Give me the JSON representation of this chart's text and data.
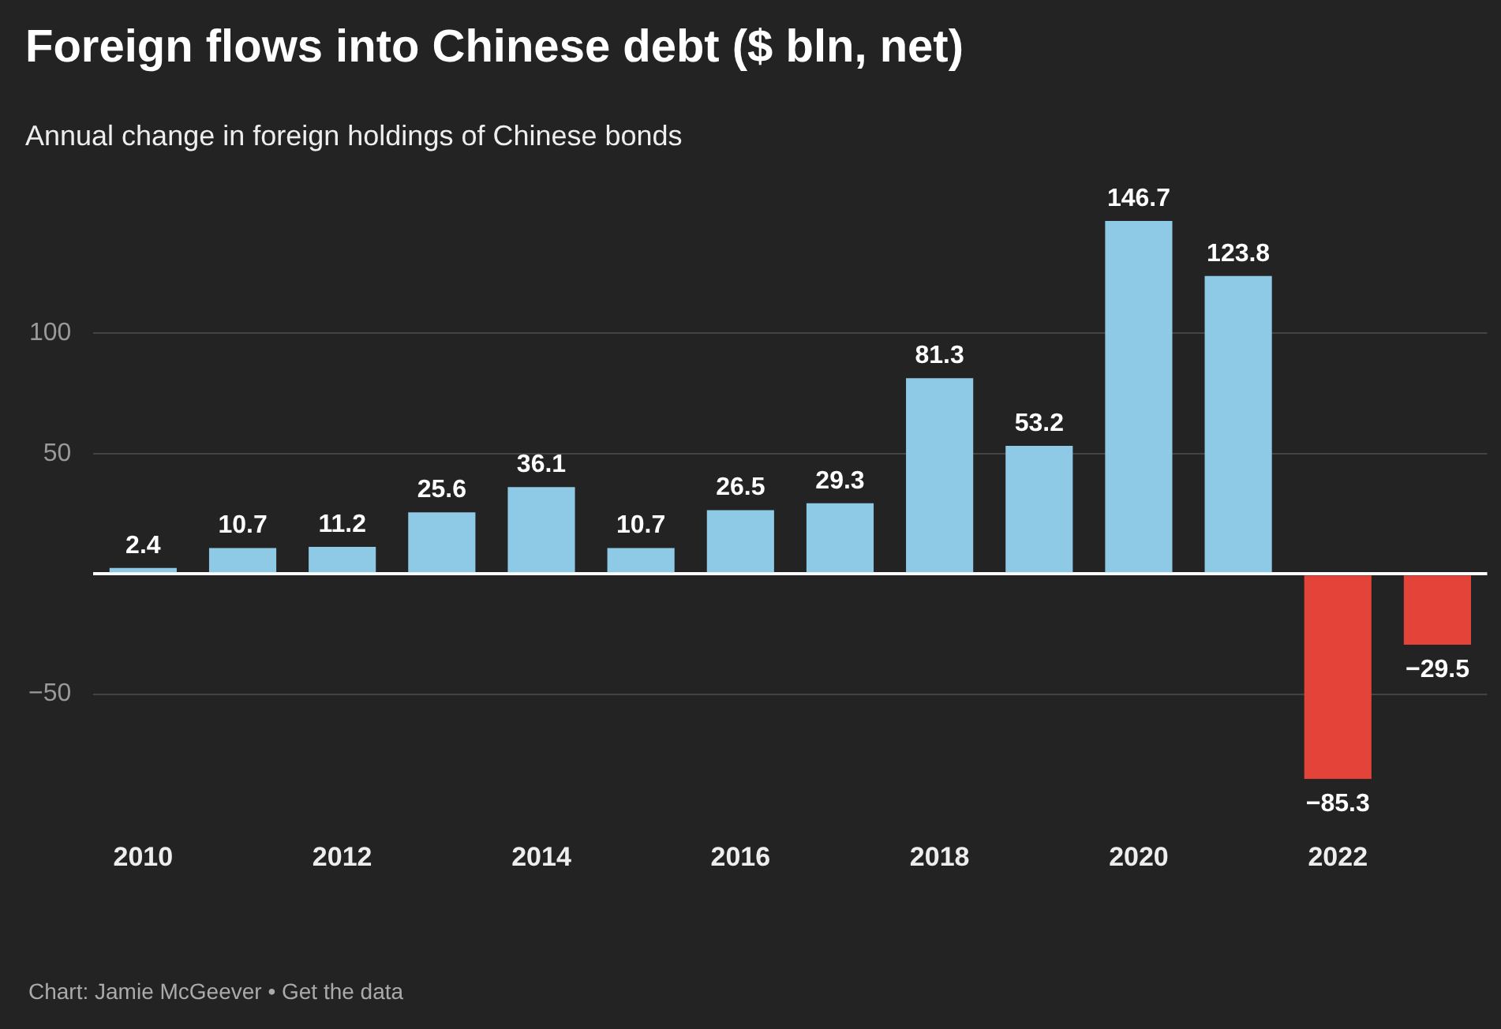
{
  "chart_data": {
    "type": "bar",
    "title": "Foreign flows into Chinese debt ($ bln, net)",
    "subtitle": "Annual change in foreign holdings of Chinese bonds",
    "categories": [
      "2010",
      null,
      "2012",
      null,
      "2014",
      null,
      "2016",
      null,
      "2018",
      null,
      "2020",
      null,
      "2022",
      null
    ],
    "values": [
      2.4,
      10.7,
      11.2,
      25.6,
      36.1,
      10.7,
      26.5,
      29.3,
      81.3,
      53.2,
      146.7,
      123.8,
      -85.3,
      -29.5
    ],
    "colors": [
      "#8ecae6",
      "#8ecae6",
      "#8ecae6",
      "#8ecae6",
      "#8ecae6",
      "#8ecae6",
      "#8ecae6",
      "#8ecae6",
      "#8ecae6",
      "#8ecae6",
      "#8ecae6",
      "#8ecae6",
      "#e4433a",
      "#e4433a"
    ],
    "value_labels": [
      "2.4",
      "10.7",
      "11.2",
      "25.6",
      "36.1",
      "10.7",
      "26.5",
      "29.3",
      "81.3",
      "53.2",
      "146.7",
      "123.8",
      "−85.3",
      "−29.5"
    ],
    "ylim": [
      -85.3,
      146.7
    ],
    "yticks": [
      {
        "value": -50,
        "label": "−50"
      },
      {
        "value": 0,
        "label": null
      },
      50,
      100
    ],
    "grid": "y",
    "annotations": [
      "Chart: Jamie McGeever • Get the data"
    ]
  }
}
